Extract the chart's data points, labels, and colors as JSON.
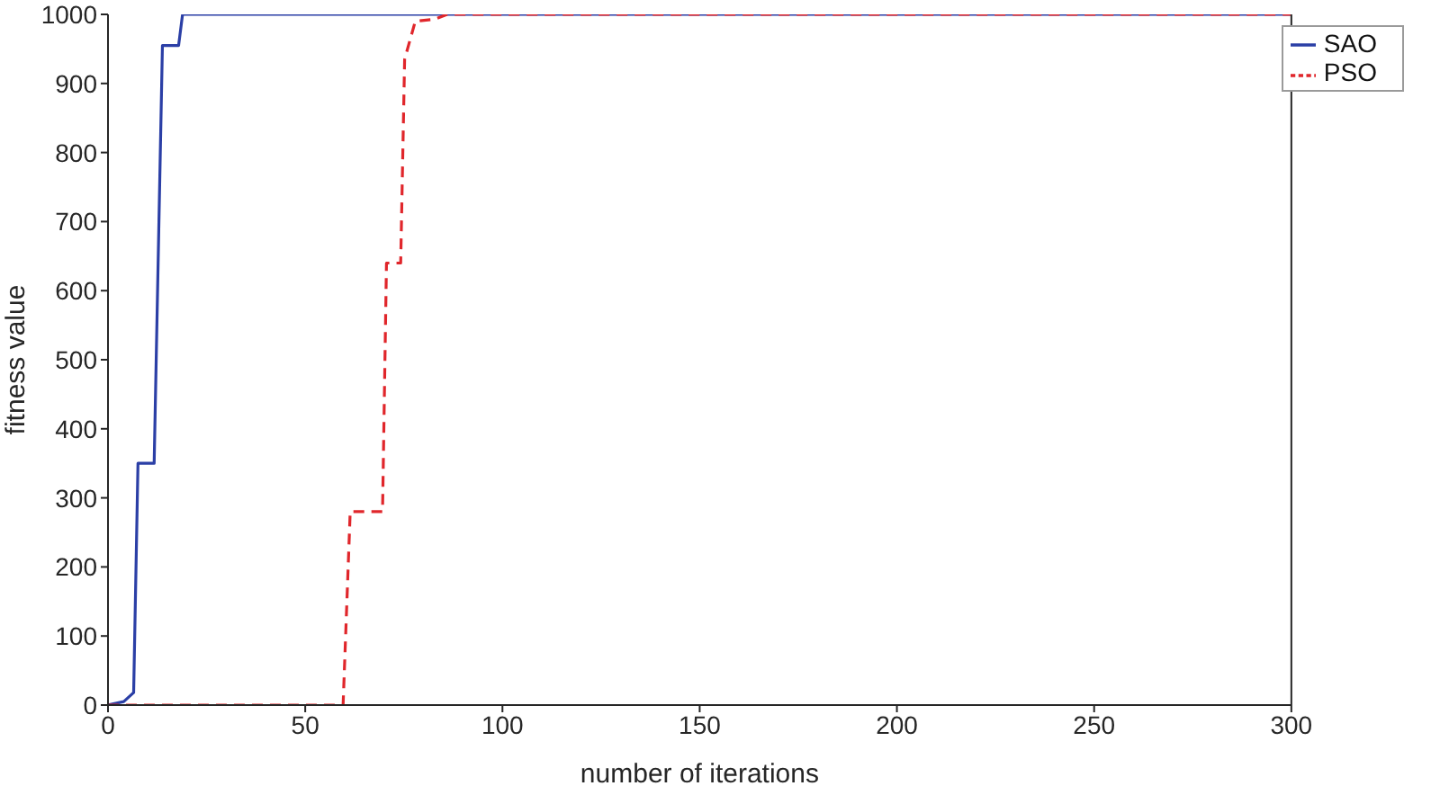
{
  "chart_data": {
    "type": "line",
    "xlabel": "number of iterations",
    "ylabel": "fitness value",
    "xlim": [
      0,
      300
    ],
    "xticks": [
      0,
      50,
      100,
      150,
      200,
      250,
      300
    ],
    "ylim": [
      0,
      1000
    ],
    "yticks": [
      0,
      100,
      200,
      300,
      400,
      500,
      600,
      700,
      800,
      900,
      1000
    ],
    "grid": false,
    "legend": "top right",
    "marker": "none",
    "series": [
      {
        "name": "SAO",
        "color": "#2b3fa6",
        "line_style": "solid",
        "x": [
          0,
          4,
          6.5,
          7.6,
          11.7,
          13.8,
          17.9,
          18.9,
          300
        ],
        "values": [
          0,
          5,
          18,
          350,
          350,
          955,
          955,
          1000,
          1000
        ]
      },
      {
        "name": "PSO",
        "color": "#e0262b",
        "line_style": "dashed",
        "x": [
          0,
          59.6,
          61.4,
          69.6,
          70.6,
          74.2,
          75.2,
          77.9,
          82.8,
          86,
          300
        ],
        "values": [
          0,
          0,
          280,
          280,
          640,
          640,
          935,
          990,
          993,
          1000,
          1000
        ]
      }
    ]
  }
}
